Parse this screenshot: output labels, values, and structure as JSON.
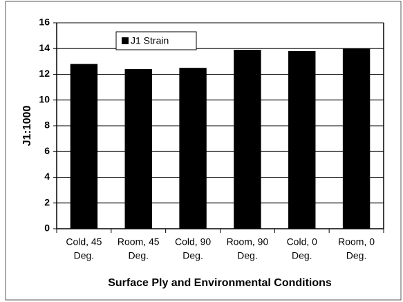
{
  "chart_data": {
    "type": "bar",
    "categories": [
      [
        "Cold, 45",
        "Deg."
      ],
      [
        "Room, 45",
        "Deg."
      ],
      [
        "Cold, 90",
        "Deg."
      ],
      [
        "Room, 90",
        "Deg."
      ],
      [
        "Cold, 0",
        "Deg."
      ],
      [
        "Room, 0",
        "Deg."
      ]
    ],
    "series": [
      {
        "name": "J1 Strain",
        "color": "#000000",
        "values": [
          12.8,
          12.4,
          12.5,
          13.9,
          13.8,
          14.0
        ]
      }
    ],
    "y_label": "J1:1000",
    "x_label": "Surface Ply and Environmental Conditions",
    "ylim": [
      0,
      16
    ],
    "yticks": [
      0,
      2,
      4,
      6,
      8,
      10,
      12,
      14,
      16
    ],
    "grid": true
  }
}
